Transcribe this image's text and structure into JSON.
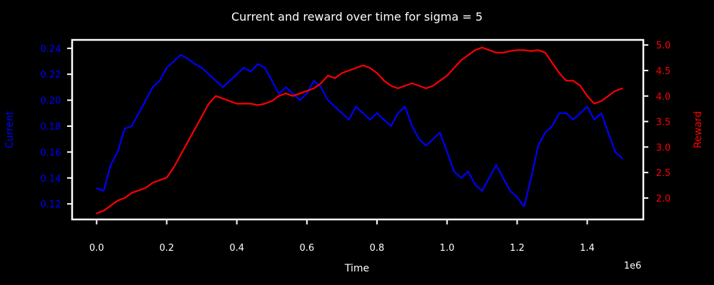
{
  "chart_data": {
    "type": "line",
    "title": "Current and reward over time for sigma = 5",
    "xlabel": "Time",
    "x_offset_label": "1e6",
    "y_left_label": "Current",
    "y_right_label": "Reward",
    "xlim": [
      -0.07,
      1.56
    ],
    "ylim_left": [
      0.108,
      0.2465
    ],
    "ylim_right": [
      1.58,
      5.1
    ],
    "x_ticks": [
      "0.0",
      "0.2",
      "0.4",
      "0.6",
      "0.8",
      "1.0",
      "1.2",
      "1.4"
    ],
    "y_left_ticks": [
      "0.12",
      "0.14",
      "0.16",
      "0.18",
      "0.20",
      "0.22",
      "0.24"
    ],
    "y_right_ticks": [
      "2.0",
      "2.5",
      "3.0",
      "3.5",
      "4.0",
      "4.5",
      "5.0"
    ],
    "colors": {
      "background": "#000000",
      "axes": "#ffffff",
      "current": "#0000ff",
      "reward": "#ff0000"
    },
    "series": [
      {
        "name": "Current",
        "axis": "left",
        "color": "#0000ff",
        "x": [
          0.0,
          0.02,
          0.04,
          0.06,
          0.08,
          0.1,
          0.12,
          0.14,
          0.16,
          0.18,
          0.2,
          0.22,
          0.24,
          0.26,
          0.28,
          0.3,
          0.32,
          0.34,
          0.36,
          0.38,
          0.4,
          0.42,
          0.44,
          0.46,
          0.48,
          0.5,
          0.52,
          0.54,
          0.56,
          0.58,
          0.6,
          0.62,
          0.64,
          0.66,
          0.68,
          0.7,
          0.72,
          0.74,
          0.76,
          0.78,
          0.8,
          0.82,
          0.84,
          0.86,
          0.88,
          0.9,
          0.92,
          0.94,
          0.96,
          0.98,
          1.0,
          1.02,
          1.04,
          1.06,
          1.08,
          1.1,
          1.12,
          1.14,
          1.16,
          1.18,
          1.2,
          1.22,
          1.24,
          1.26,
          1.28,
          1.3,
          1.32,
          1.34,
          1.36,
          1.38,
          1.4,
          1.42,
          1.44,
          1.46,
          1.48,
          1.5
        ],
        "y": [
          0.132,
          0.13,
          0.15,
          0.16,
          0.178,
          0.18,
          0.19,
          0.2,
          0.21,
          0.215,
          0.225,
          0.23,
          0.235,
          0.232,
          0.228,
          0.225,
          0.22,
          0.215,
          0.21,
          0.215,
          0.22,
          0.225,
          0.222,
          0.228,
          0.225,
          0.215,
          0.205,
          0.21,
          0.205,
          0.2,
          0.205,
          0.215,
          0.21,
          0.2,
          0.195,
          0.19,
          0.185,
          0.195,
          0.19,
          0.185,
          0.19,
          0.185,
          0.18,
          0.19,
          0.195,
          0.18,
          0.17,
          0.165,
          0.17,
          0.175,
          0.16,
          0.145,
          0.14,
          0.145,
          0.135,
          0.13,
          0.14,
          0.15,
          0.14,
          0.13,
          0.125,
          0.118,
          0.14,
          0.165,
          0.175,
          0.18,
          0.19,
          0.19,
          0.185,
          0.19,
          0.195,
          0.185,
          0.19,
          0.175,
          0.16,
          0.155
        ]
      },
      {
        "name": "Reward",
        "axis": "right",
        "color": "#ff0000",
        "x": [
          0.0,
          0.02,
          0.04,
          0.06,
          0.08,
          0.1,
          0.12,
          0.14,
          0.16,
          0.18,
          0.2,
          0.22,
          0.24,
          0.26,
          0.28,
          0.3,
          0.32,
          0.34,
          0.36,
          0.38,
          0.4,
          0.42,
          0.44,
          0.46,
          0.48,
          0.5,
          0.52,
          0.54,
          0.56,
          0.58,
          0.6,
          0.62,
          0.64,
          0.66,
          0.68,
          0.7,
          0.72,
          0.74,
          0.76,
          0.78,
          0.8,
          0.82,
          0.84,
          0.86,
          0.88,
          0.9,
          0.92,
          0.94,
          0.96,
          0.98,
          1.0,
          1.02,
          1.04,
          1.06,
          1.08,
          1.1,
          1.12,
          1.14,
          1.16,
          1.18,
          1.2,
          1.22,
          1.24,
          1.26,
          1.28,
          1.3,
          1.32,
          1.34,
          1.36,
          1.38,
          1.4,
          1.42,
          1.44,
          1.46,
          1.48,
          1.5
        ],
        "y": [
          1.7,
          1.75,
          1.85,
          1.95,
          2.0,
          2.1,
          2.15,
          2.2,
          2.3,
          2.35,
          2.4,
          2.6,
          2.85,
          3.1,
          3.35,
          3.6,
          3.85,
          4.0,
          3.95,
          3.9,
          3.85,
          3.85,
          3.85,
          3.82,
          3.85,
          3.9,
          4.0,
          4.05,
          4.0,
          4.05,
          4.1,
          4.15,
          4.25,
          4.4,
          4.35,
          4.45,
          4.5,
          4.55,
          4.6,
          4.55,
          4.45,
          4.3,
          4.2,
          4.15,
          4.2,
          4.25,
          4.2,
          4.15,
          4.2,
          4.3,
          4.4,
          4.55,
          4.7,
          4.8,
          4.9,
          4.95,
          4.9,
          4.85,
          4.85,
          4.88,
          4.9,
          4.9,
          4.88,
          4.9,
          4.85,
          4.65,
          4.45,
          4.3,
          4.3,
          4.2,
          4.0,
          3.85,
          3.9,
          4.0,
          4.1,
          4.15
        ]
      }
    ]
  }
}
